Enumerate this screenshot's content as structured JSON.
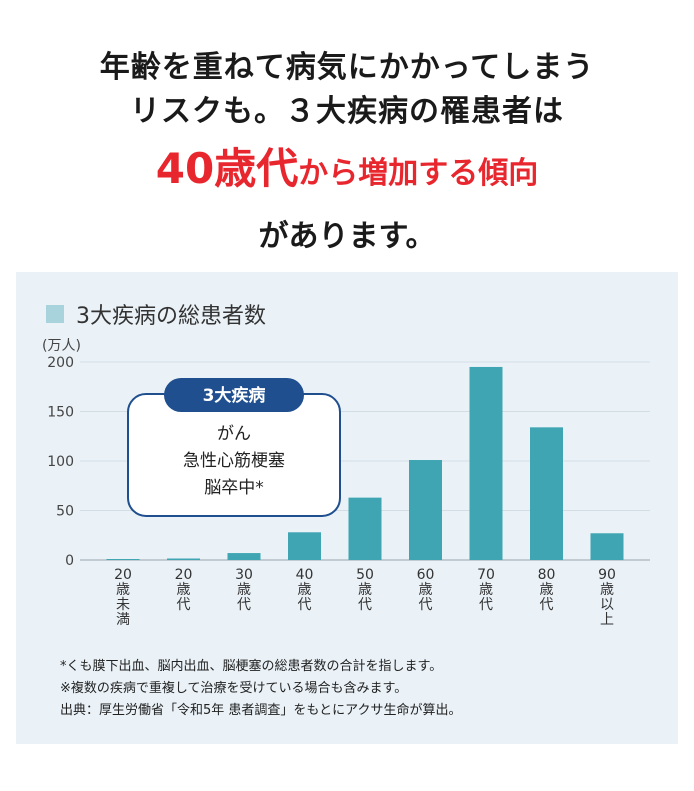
{
  "headline": {
    "line1": "年齢を重ねて病気にかかってしまう",
    "line2": "リスクも。３大疾病の罹患者は",
    "highlight_big": "40歳代",
    "highlight_small": "から増加する傾向",
    "line4": "があります。"
  },
  "chart_data": {
    "type": "bar",
    "title": "3大疾病の総患者数",
    "unit_label": "(万人)",
    "categories": [
      [
        "20",
        "歳",
        "未",
        "満"
      ],
      [
        "20",
        "歳",
        "代"
      ],
      [
        "30",
        "歳",
        "代"
      ],
      [
        "40",
        "歳",
        "代"
      ],
      [
        "50",
        "歳",
        "代"
      ],
      [
        "60",
        "歳",
        "代"
      ],
      [
        "70",
        "歳",
        "代"
      ],
      [
        "80",
        "歳",
        "代"
      ],
      [
        "90",
        "歳",
        "以",
        "上"
      ]
    ],
    "values": [
      1,
      1.5,
      7,
      28,
      63,
      101,
      195,
      134,
      27
    ],
    "ylim": [
      0,
      200
    ],
    "yticks": [
      0,
      50,
      100,
      150,
      200
    ],
    "grid": true,
    "bar_color": "#3fa5b2",
    "legend_color": "#a9d3dc"
  },
  "callout": {
    "title": "3大疾病",
    "items": [
      "がん",
      "急性心筋梗塞",
      "脳卒中*"
    ],
    "accent": "#1f4f8f"
  },
  "notes": [
    "*くも膜下出血、脳内出血、脳梗塞の総患者数の合計を指します。",
    "※複数の疾病で重複して治療を受けている場合も含みます。",
    "出典：厚生労働省「令和5年 患者調査」をもとにアクサ生命が算出。"
  ]
}
